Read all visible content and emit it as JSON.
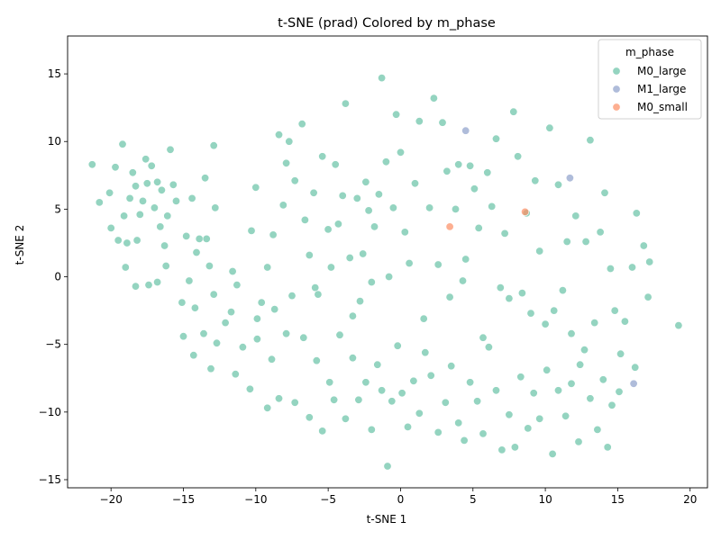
{
  "chart_data": {
    "type": "scatter",
    "title": "t-SNE (prad) Colored by m_phase",
    "xlabel": "t-SNE 1",
    "ylabel": "t-SNE 2",
    "xlim": [
      -23,
      21.2
    ],
    "ylim": [
      -15.6,
      17.8
    ],
    "xticks": [
      -20,
      -15,
      -10,
      -5,
      0,
      5,
      10,
      15,
      20
    ],
    "yticks": [
      -15,
      -10,
      -5,
      0,
      5,
      10,
      15
    ],
    "legend": {
      "title": "m_phase",
      "placement": "top-right",
      "entries": [
        "M0_large",
        "M1_large",
        "M0_small"
      ]
    },
    "colors": {
      "M0_large": "#66c2a5",
      "M1_large": "#8da0cb",
      "M0_small": "#fc8d62"
    },
    "series": [
      {
        "name": "M0_large",
        "points": [
          [
            -21.3,
            8.3
          ],
          [
            -20.8,
            5.5
          ],
          [
            -20.1,
            6.2
          ],
          [
            -20.0,
            3.6
          ],
          [
            -19.7,
            8.1
          ],
          [
            -19.5,
            2.7
          ],
          [
            -19.2,
            9.8
          ],
          [
            -19.1,
            4.5
          ],
          [
            -18.9,
            2.5
          ],
          [
            -18.7,
            5.8
          ],
          [
            -18.5,
            7.7
          ],
          [
            -18.3,
            6.7
          ],
          [
            -18.2,
            2.7
          ],
          [
            -18.0,
            4.6
          ],
          [
            -17.8,
            5.6
          ],
          [
            -17.6,
            8.7
          ],
          [
            -17.5,
            6.9
          ],
          [
            -17.2,
            8.2
          ],
          [
            -17.0,
            5.1
          ],
          [
            -16.8,
            7.0
          ],
          [
            -16.6,
            3.7
          ],
          [
            -16.5,
            6.4
          ],
          [
            -16.3,
            2.3
          ],
          [
            -16.1,
            4.5
          ],
          [
            -15.9,
            9.4
          ],
          [
            -15.7,
            6.8
          ],
          [
            -15.5,
            5.6
          ],
          [
            -14.8,
            3.0
          ],
          [
            -14.4,
            5.8
          ],
          [
            -14.1,
            1.8
          ],
          [
            -13.9,
            2.8
          ],
          [
            -13.5,
            7.3
          ],
          [
            -13.4,
            2.8
          ],
          [
            -12.9,
            9.7
          ],
          [
            -12.8,
            5.1
          ],
          [
            -19.0,
            0.7
          ],
          [
            -18.3,
            -0.7
          ],
          [
            -17.4,
            -0.6
          ],
          [
            -16.8,
            -0.4
          ],
          [
            -16.2,
            0.8
          ],
          [
            -15.1,
            -1.9
          ],
          [
            -14.6,
            -0.3
          ],
          [
            -14.2,
            -2.3
          ],
          [
            -13.2,
            0.8
          ],
          [
            -12.9,
            -1.3
          ],
          [
            -11.7,
            -2.6
          ],
          [
            -11.6,
            0.4
          ],
          [
            -11.3,
            -0.6
          ],
          [
            -10.3,
            3.4
          ],
          [
            -10.0,
            6.6
          ],
          [
            -9.9,
            -3.1
          ],
          [
            -9.6,
            -1.9
          ],
          [
            -9.2,
            0.7
          ],
          [
            -8.8,
            3.1
          ],
          [
            -8.7,
            -2.4
          ],
          [
            -8.4,
            10.5
          ],
          [
            -8.1,
            5.3
          ],
          [
            -7.9,
            8.4
          ],
          [
            -7.7,
            10.0
          ],
          [
            -7.5,
            -1.4
          ],
          [
            -7.3,
            7.1
          ],
          [
            -6.8,
            11.3
          ],
          [
            -6.6,
            4.2
          ],
          [
            -6.3,
            1.6
          ],
          [
            -6.0,
            6.2
          ],
          [
            -5.9,
            -0.8
          ],
          [
            -5.7,
            -1.3
          ],
          [
            -5.4,
            8.9
          ],
          [
            -5.0,
            3.5
          ],
          [
            -4.8,
            0.7
          ],
          [
            -4.5,
            8.3
          ],
          [
            -4.3,
            3.9
          ],
          [
            -4.0,
            6.0
          ],
          [
            -3.8,
            12.8
          ],
          [
            -3.5,
            1.4
          ],
          [
            -3.3,
            -2.9
          ],
          [
            -3.0,
            5.8
          ],
          [
            -2.8,
            -1.8
          ],
          [
            -2.6,
            1.7
          ],
          [
            -2.4,
            7.0
          ],
          [
            -2.2,
            4.9
          ],
          [
            -2.0,
            -0.4
          ],
          [
            -1.8,
            3.7
          ],
          [
            -1.5,
            6.1
          ],
          [
            -1.3,
            14.7
          ],
          [
            -1.0,
            8.5
          ],
          [
            -0.8,
            0.0
          ],
          [
            -0.5,
            5.1
          ],
          [
            -0.3,
            12.0
          ],
          [
            0.0,
            9.2
          ],
          [
            0.3,
            3.3
          ],
          [
            0.6,
            1.0
          ],
          [
            1.0,
            6.9
          ],
          [
            1.3,
            11.5
          ],
          [
            1.6,
            -3.1
          ],
          [
            2.0,
            5.1
          ],
          [
            2.3,
            13.2
          ],
          [
            2.6,
            0.9
          ],
          [
            2.9,
            11.4
          ],
          [
            3.2,
            7.8
          ],
          [
            3.4,
            -1.5
          ],
          [
            3.8,
            5.0
          ],
          [
            4.0,
            8.3
          ],
          [
            4.3,
            -0.3
          ],
          [
            4.5,
            1.3
          ],
          [
            4.8,
            8.2
          ],
          [
            5.1,
            6.5
          ],
          [
            5.4,
            3.6
          ],
          [
            5.7,
            -4.5
          ],
          [
            6.0,
            7.7
          ],
          [
            6.3,
            5.2
          ],
          [
            6.6,
            10.2
          ],
          [
            6.9,
            -0.8
          ],
          [
            7.2,
            3.2
          ],
          [
            7.5,
            -1.6
          ],
          [
            7.8,
            12.2
          ],
          [
            8.1,
            8.9
          ],
          [
            8.4,
            -1.2
          ],
          [
            8.7,
            4.7
          ],
          [
            9.0,
            -2.7
          ],
          [
            9.3,
            7.1
          ],
          [
            9.6,
            1.9
          ],
          [
            10.0,
            -3.5
          ],
          [
            10.3,
            11.0
          ],
          [
            10.6,
            -2.5
          ],
          [
            10.9,
            6.8
          ],
          [
            11.2,
            -1.0
          ],
          [
            11.5,
            2.6
          ],
          [
            11.8,
            -4.2
          ],
          [
            12.1,
            4.5
          ],
          [
            12.4,
            -6.5
          ],
          [
            12.8,
            2.6
          ],
          [
            13.1,
            10.1
          ],
          [
            13.4,
            -3.4
          ],
          [
            13.8,
            3.3
          ],
          [
            14.1,
            6.2
          ],
          [
            14.5,
            0.6
          ],
          [
            14.8,
            -2.5
          ],
          [
            15.1,
            -8.5
          ],
          [
            15.5,
            -3.3
          ],
          [
            16.0,
            0.7
          ],
          [
            16.3,
            4.7
          ],
          [
            16.8,
            2.3
          ],
          [
            17.1,
            -1.5
          ],
          [
            17.2,
            1.1
          ],
          [
            19.2,
            -3.6
          ],
          [
            -15.0,
            -4.4
          ],
          [
            -14.3,
            -5.8
          ],
          [
            -13.6,
            -4.2
          ],
          [
            -13.1,
            -6.8
          ],
          [
            -12.7,
            -4.9
          ],
          [
            -12.1,
            -3.4
          ],
          [
            -11.4,
            -7.2
          ],
          [
            -10.9,
            -5.2
          ],
          [
            -10.4,
            -8.3
          ],
          [
            -9.9,
            -4.6
          ],
          [
            -9.2,
            -9.7
          ],
          [
            -8.9,
            -6.1
          ],
          [
            -8.4,
            -9.0
          ],
          [
            -7.9,
            -4.2
          ],
          [
            -7.3,
            -9.3
          ],
          [
            -6.7,
            -4.5
          ],
          [
            -6.3,
            -10.4
          ],
          [
            -5.8,
            -6.2
          ],
          [
            -5.4,
            -11.4
          ],
          [
            -4.9,
            -7.8
          ],
          [
            -4.6,
            -9.1
          ],
          [
            -4.2,
            -4.3
          ],
          [
            -3.8,
            -10.5
          ],
          [
            -3.3,
            -6.0
          ],
          [
            -2.9,
            -9.1
          ],
          [
            -2.4,
            -7.8
          ],
          [
            -2.0,
            -11.3
          ],
          [
            -1.6,
            -6.5
          ],
          [
            -1.3,
            -8.4
          ],
          [
            -0.9,
            -14.0
          ],
          [
            -0.6,
            -9.2
          ],
          [
            -0.2,
            -5.1
          ],
          [
            0.1,
            -8.6
          ],
          [
            0.5,
            -11.1
          ],
          [
            0.9,
            -7.7
          ],
          [
            1.3,
            -10.1
          ],
          [
            1.7,
            -5.6
          ],
          [
            2.1,
            -7.3
          ],
          [
            2.6,
            -11.5
          ],
          [
            3.1,
            -9.3
          ],
          [
            3.5,
            -6.6
          ],
          [
            4.0,
            -10.8
          ],
          [
            4.4,
            -12.1
          ],
          [
            4.8,
            -7.8
          ],
          [
            5.3,
            -9.2
          ],
          [
            5.7,
            -11.6
          ],
          [
            6.1,
            -5.2
          ],
          [
            6.6,
            -8.4
          ],
          [
            7.0,
            -12.8
          ],
          [
            7.5,
            -10.2
          ],
          [
            7.9,
            -12.6
          ],
          [
            8.3,
            -7.4
          ],
          [
            8.8,
            -11.2
          ],
          [
            9.2,
            -8.6
          ],
          [
            9.6,
            -10.5
          ],
          [
            10.1,
            -6.9
          ],
          [
            10.5,
            -13.1
          ],
          [
            10.9,
            -8.4
          ],
          [
            11.4,
            -10.3
          ],
          [
            11.8,
            -7.9
          ],
          [
            12.3,
            -12.2
          ],
          [
            12.7,
            -5.4
          ],
          [
            13.1,
            -9.0
          ],
          [
            13.6,
            -11.3
          ],
          [
            14.0,
            -7.6
          ],
          [
            14.3,
            -12.6
          ],
          [
            14.6,
            -9.5
          ],
          [
            15.2,
            -5.7
          ],
          [
            16.2,
            -6.7
          ]
        ]
      },
      {
        "name": "M1_large",
        "points": [
          [
            4.5,
            10.8
          ],
          [
            11.7,
            7.3
          ],
          [
            16.1,
            -7.9
          ]
        ]
      },
      {
        "name": "M0_small",
        "points": [
          [
            3.4,
            3.7
          ],
          [
            8.6,
            4.8
          ]
        ]
      }
    ]
  }
}
